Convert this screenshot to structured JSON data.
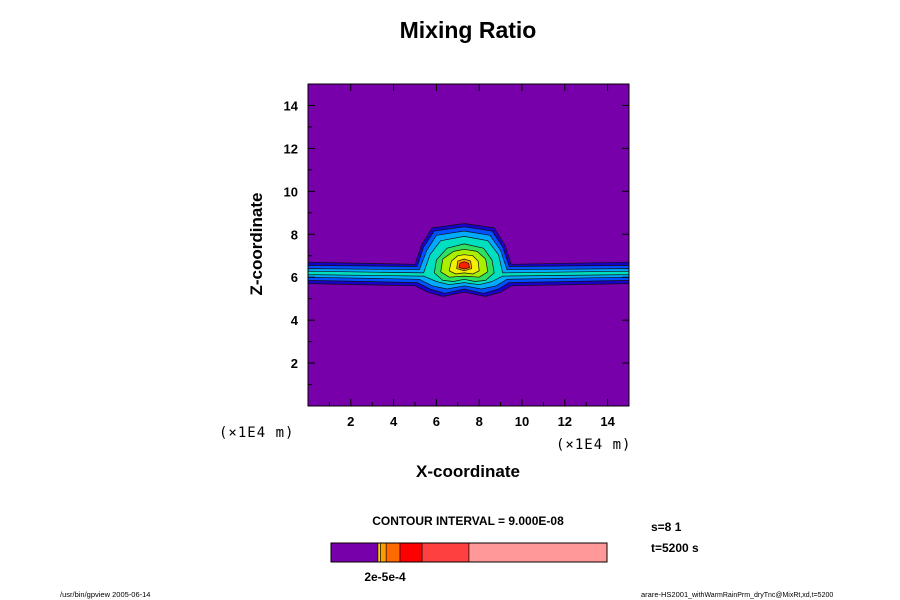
{
  "chart_data": {
    "type": "heatmap",
    "title": "Mixing Ratio",
    "xlabel": "X-coordinate",
    "ylabel": "Z-coordinate",
    "x_unit": "(×1E4 m)",
    "y_unit": "(×1E4 m)",
    "xlim": [
      0,
      15
    ],
    "ylim": [
      0,
      15
    ],
    "x_ticks": [
      "2",
      "4",
      "6",
      "8",
      "10",
      "12",
      "14"
    ],
    "y_ticks": [
      "2",
      "4",
      "6",
      "8",
      "10",
      "12",
      "14"
    ],
    "contour_interval": "CONTOUR INTERVAL = 9.000E-08",
    "colorbar_label": "2e-5e-4",
    "background_color": "#7700aa",
    "level_colors": [
      "#7700aa",
      "#1a00c8",
      "#0050ff",
      "#00aaff",
      "#00e0c0",
      "#30e060",
      "#a8f000",
      "#f0f000",
      "#ffa000",
      "#ff2000"
    ],
    "colorbar_colors": [
      "#7700aa",
      "#ffd000",
      "#ff9a00",
      "#ff6a00",
      "#ff0000",
      "#ff4040",
      "#ff9898"
    ],
    "colorbar_segments": [
      0,
      0.17,
      0.18,
      0.2,
      0.25,
      0.33,
      0.5,
      1.0
    ],
    "contours": [
      {
        "level": 1,
        "points": [
          [
            0,
            6.7
          ],
          [
            5.0,
            6.6
          ],
          [
            5.3,
            7.5
          ],
          [
            5.8,
            8.3
          ],
          [
            7.3,
            8.5
          ],
          [
            8.7,
            8.3
          ],
          [
            9.2,
            7.5
          ],
          [
            9.5,
            6.6
          ],
          [
            15,
            6.7
          ],
          [
            15,
            5.7
          ],
          [
            9.5,
            5.6
          ],
          [
            9.0,
            5.3
          ],
          [
            8.3,
            5.1
          ],
          [
            7.3,
            5.3
          ],
          [
            6.3,
            5.1
          ],
          [
            5.6,
            5.3
          ],
          [
            5.0,
            5.6
          ],
          [
            0,
            5.7
          ]
        ]
      },
      {
        "level": 2,
        "points": [
          [
            0,
            6.55
          ],
          [
            5.1,
            6.5
          ],
          [
            5.4,
            7.4
          ],
          [
            5.9,
            8.15
          ],
          [
            7.3,
            8.35
          ],
          [
            8.6,
            8.15
          ],
          [
            9.1,
            7.4
          ],
          [
            9.4,
            6.5
          ],
          [
            15,
            6.55
          ],
          [
            15,
            5.85
          ],
          [
            9.4,
            5.75
          ],
          [
            8.9,
            5.45
          ],
          [
            8.2,
            5.25
          ],
          [
            7.3,
            5.45
          ],
          [
            6.4,
            5.25
          ],
          [
            5.7,
            5.45
          ],
          [
            5.1,
            5.75
          ],
          [
            0,
            5.85
          ]
        ]
      },
      {
        "level": 3,
        "points": [
          [
            0,
            6.4
          ],
          [
            5.2,
            6.35
          ],
          [
            5.55,
            7.25
          ],
          [
            6.0,
            7.95
          ],
          [
            7.3,
            8.15
          ],
          [
            8.5,
            7.95
          ],
          [
            9.0,
            7.25
          ],
          [
            9.3,
            6.35
          ],
          [
            15,
            6.4
          ],
          [
            15,
            6.0
          ],
          [
            9.3,
            5.9
          ],
          [
            8.8,
            5.6
          ],
          [
            8.1,
            5.45
          ],
          [
            7.3,
            5.6
          ],
          [
            6.5,
            5.45
          ],
          [
            5.8,
            5.6
          ],
          [
            5.2,
            5.9
          ],
          [
            0,
            6.0
          ]
        ]
      },
      {
        "level": 4,
        "points": [
          [
            0,
            6.28
          ],
          [
            5.4,
            6.2
          ],
          [
            5.7,
            7.05
          ],
          [
            6.2,
            7.7
          ],
          [
            7.3,
            7.9
          ],
          [
            8.4,
            7.7
          ],
          [
            8.9,
            7.05
          ],
          [
            9.1,
            6.2
          ],
          [
            15,
            6.28
          ],
          [
            15,
            6.12
          ],
          [
            9.1,
            6.05
          ],
          [
            8.6,
            5.8
          ],
          [
            8.0,
            5.65
          ],
          [
            7.3,
            5.75
          ],
          [
            6.6,
            5.65
          ],
          [
            6.0,
            5.8
          ],
          [
            5.4,
            6.05
          ],
          [
            0,
            6.12
          ]
        ]
      },
      {
        "level": 5,
        "points": [
          [
            5.9,
            6.2
          ],
          [
            6.0,
            6.8
          ],
          [
            6.5,
            7.35
          ],
          [
            7.3,
            7.55
          ],
          [
            8.2,
            7.35
          ],
          [
            8.6,
            6.8
          ],
          [
            8.7,
            6.2
          ],
          [
            8.3,
            5.85
          ],
          [
            7.8,
            5.8
          ],
          [
            7.3,
            5.9
          ],
          [
            6.8,
            5.8
          ],
          [
            6.3,
            5.85
          ]
        ]
      },
      {
        "level": 6,
        "points": [
          [
            6.2,
            6.25
          ],
          [
            6.3,
            6.85
          ],
          [
            6.8,
            7.2
          ],
          [
            7.3,
            7.3
          ],
          [
            7.9,
            7.2
          ],
          [
            8.3,
            6.85
          ],
          [
            8.4,
            6.25
          ],
          [
            8.0,
            6.0
          ],
          [
            7.3,
            6.05
          ],
          [
            6.6,
            6.0
          ]
        ]
      },
      {
        "level": 7,
        "points": [
          [
            6.6,
            6.3
          ],
          [
            6.7,
            6.75
          ],
          [
            7.0,
            7.0
          ],
          [
            7.3,
            7.05
          ],
          [
            7.7,
            7.0
          ],
          [
            7.95,
            6.75
          ],
          [
            8.0,
            6.3
          ],
          [
            7.7,
            6.15
          ],
          [
            7.3,
            6.2
          ],
          [
            6.9,
            6.15
          ]
        ]
      },
      {
        "level": 8,
        "points": [
          [
            6.95,
            6.4
          ],
          [
            7.0,
            6.75
          ],
          [
            7.3,
            6.85
          ],
          [
            7.6,
            6.75
          ],
          [
            7.65,
            6.4
          ],
          [
            7.3,
            6.3
          ]
        ]
      },
      {
        "level": 9,
        "points": [
          [
            7.05,
            6.45
          ],
          [
            7.1,
            6.65
          ],
          [
            7.3,
            6.72
          ],
          [
            7.5,
            6.65
          ],
          [
            7.55,
            6.45
          ],
          [
            7.3,
            6.38
          ]
        ]
      }
    ]
  },
  "info": {
    "step": "s=8 1",
    "time": "t=5200 s"
  },
  "footer": {
    "left": "/usr/bin/gpview 2005-06-14",
    "right_main": "arare-HS2001",
    "right_small": "_withWarmRainPrm_dryTnc@MixRt,xd,t=5200"
  }
}
